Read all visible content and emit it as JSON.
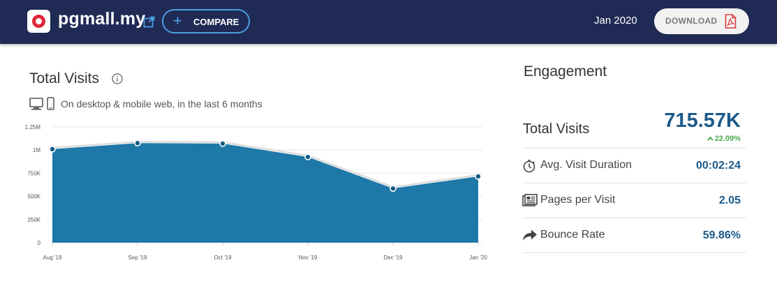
{
  "header": {
    "site_name": "pgmall.my",
    "compare_label": "COMPARE",
    "date": "Jan 2020",
    "download_label": "DOWNLOAD"
  },
  "total_visits_panel": {
    "title": "Total Visits",
    "subtitle": "On desktop & mobile web, in the last 6 months"
  },
  "chart_data": {
    "type": "area",
    "categories": [
      "Aug '19",
      "Sep '19",
      "Oct '19",
      "Nov '19",
      "Dec '19",
      "Jan '20"
    ],
    "values": [
      1010000,
      1075000,
      1070000,
      925000,
      585000,
      715570
    ],
    "y_ticks": [
      {
        "value": 0,
        "label": "0"
      },
      {
        "value": 250000,
        "label": "250K"
      },
      {
        "value": 500000,
        "label": "500K"
      },
      {
        "value": 750000,
        "label": "750K"
      },
      {
        "value": 1000000,
        "label": "1M"
      },
      {
        "value": 1250000,
        "label": "1.25M"
      }
    ],
    "ylim": [
      0,
      1250000
    ],
    "grid": true,
    "fill_color": "#1e78a8",
    "point_color": "#135b86"
  },
  "engagement": {
    "title": "Engagement",
    "total_visits_label": "Total Visits",
    "total_visits_value": "715.57K",
    "total_visits_change": "22.09%",
    "rows": [
      {
        "label": "Avg. Visit Duration",
        "value": "00:02:24",
        "icon": "stopwatch-icon"
      },
      {
        "label": "Pages per Visit",
        "value": "2.05",
        "icon": "pages-icon"
      },
      {
        "label": "Bounce Rate",
        "value": "59.86%",
        "icon": "bounce-arrow-icon"
      }
    ]
  },
  "colors": {
    "header_bg": "#1f2a55",
    "accent_blue": "#1b5a8a",
    "positive_green": "#4caa4f",
    "compare_border": "#4a9fe0",
    "pdf_red": "#e03b3b"
  }
}
